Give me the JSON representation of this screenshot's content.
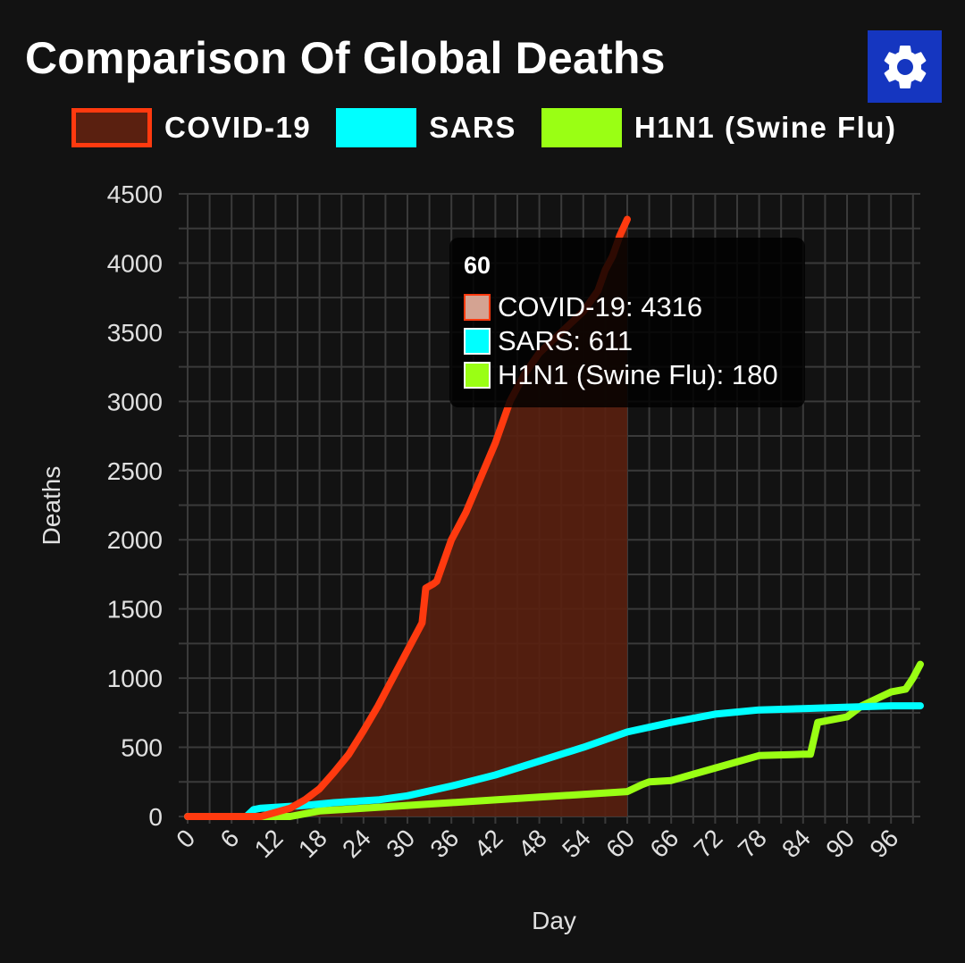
{
  "header": {
    "title": "Comparison Of Global Deaths",
    "settings_icon": "gear-icon"
  },
  "colors": {
    "background": "#121212",
    "covid": "#ff3a0f",
    "covid_fill": "#5a2010",
    "sars": "#00ffff",
    "h1n1": "#9aff14",
    "grid": "#3a3a3a",
    "settings_bg": "#1536c0"
  },
  "tooltip": {
    "title": "60",
    "rows": [
      {
        "label": "COVID-19: 4316"
      },
      {
        "label": "SARS: 611"
      },
      {
        "label": "H1N1 (Swine Flu): 180"
      }
    ]
  },
  "chart_data": {
    "type": "line",
    "xlabel": "Day",
    "ylabel": "Deaths",
    "xlim": [
      0,
      100
    ],
    "ylim": [
      0,
      4500
    ],
    "y_ticks": [
      "0",
      "500",
      "1000",
      "1500",
      "2000",
      "2500",
      "3000",
      "3500",
      "4000",
      "4500"
    ],
    "x_ticks": [
      "0",
      "6",
      "12",
      "18",
      "24",
      "30",
      "36",
      "42",
      "48",
      "54",
      "60",
      "66",
      "72",
      "78",
      "84",
      "90",
      "96"
    ],
    "grid": true,
    "legend_position": "top",
    "series": [
      {
        "name": "COVID-19",
        "filled": true,
        "x": [
          0,
          10,
          12,
          14,
          16,
          18,
          20,
          22,
          24,
          26,
          28,
          30,
          32,
          32.5,
          33.5,
          34,
          36,
          38,
          40,
          42,
          43,
          44,
          46,
          48,
          50,
          52,
          54,
          56,
          57,
          58,
          59,
          60
        ],
        "y": [
          0,
          0,
          30,
          60,
          120,
          200,
          320,
          450,
          620,
          800,
          1000,
          1200,
          1400,
          1650,
          1680,
          1700,
          2000,
          2200,
          2450,
          2700,
          2850,
          3000,
          3200,
          3350,
          3450,
          3550,
          3650,
          3800,
          3950,
          4050,
          4200,
          4316
        ]
      },
      {
        "name": "SARS",
        "x": [
          0,
          8,
          9,
          10,
          16,
          20,
          26,
          30,
          36,
          42,
          48,
          54,
          60,
          66,
          72,
          78,
          84,
          90,
          96,
          100
        ],
        "y": [
          0,
          0,
          50,
          60,
          80,
          100,
          120,
          150,
          220,
          300,
          400,
          500,
          611,
          680,
          740,
          770,
          780,
          790,
          800,
          800
        ]
      },
      {
        "name": "H1N1 (Swine Flu)",
        "x": [
          0,
          14,
          18,
          24,
          30,
          36,
          42,
          48,
          54,
          60,
          62,
          63,
          66,
          70,
          74,
          78,
          84,
          85,
          86,
          88,
          90,
          92,
          94,
          96,
          98,
          99,
          100
        ],
        "y": [
          0,
          0,
          40,
          60,
          80,
          100,
          120,
          140,
          160,
          180,
          230,
          250,
          260,
          320,
          380,
          440,
          450,
          450,
          680,
          700,
          720,
          800,
          850,
          900,
          920,
          1000,
          1100
        ]
      }
    ]
  }
}
